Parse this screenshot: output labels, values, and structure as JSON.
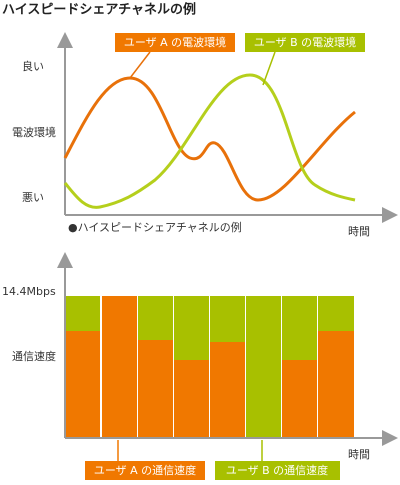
{
  "title": "ハイスピードシェアチャネルの例",
  "signal_chart": {
    "y_labels": [
      "良い",
      "電波環境",
      "悪い"
    ],
    "x_label": "時間",
    "caption": "●ハイスピードシェアチャネルの例",
    "legend": [
      "ユーザ A の電波環境",
      "ユーザ B の電波環境"
    ]
  },
  "speed_chart": {
    "y_max_label": "14.4Mbps",
    "y_label": "通信速度",
    "x_label": "時間",
    "legend": [
      "ユーザ A の通信速度",
      "ユーザ B の通信速度"
    ]
  }
}
